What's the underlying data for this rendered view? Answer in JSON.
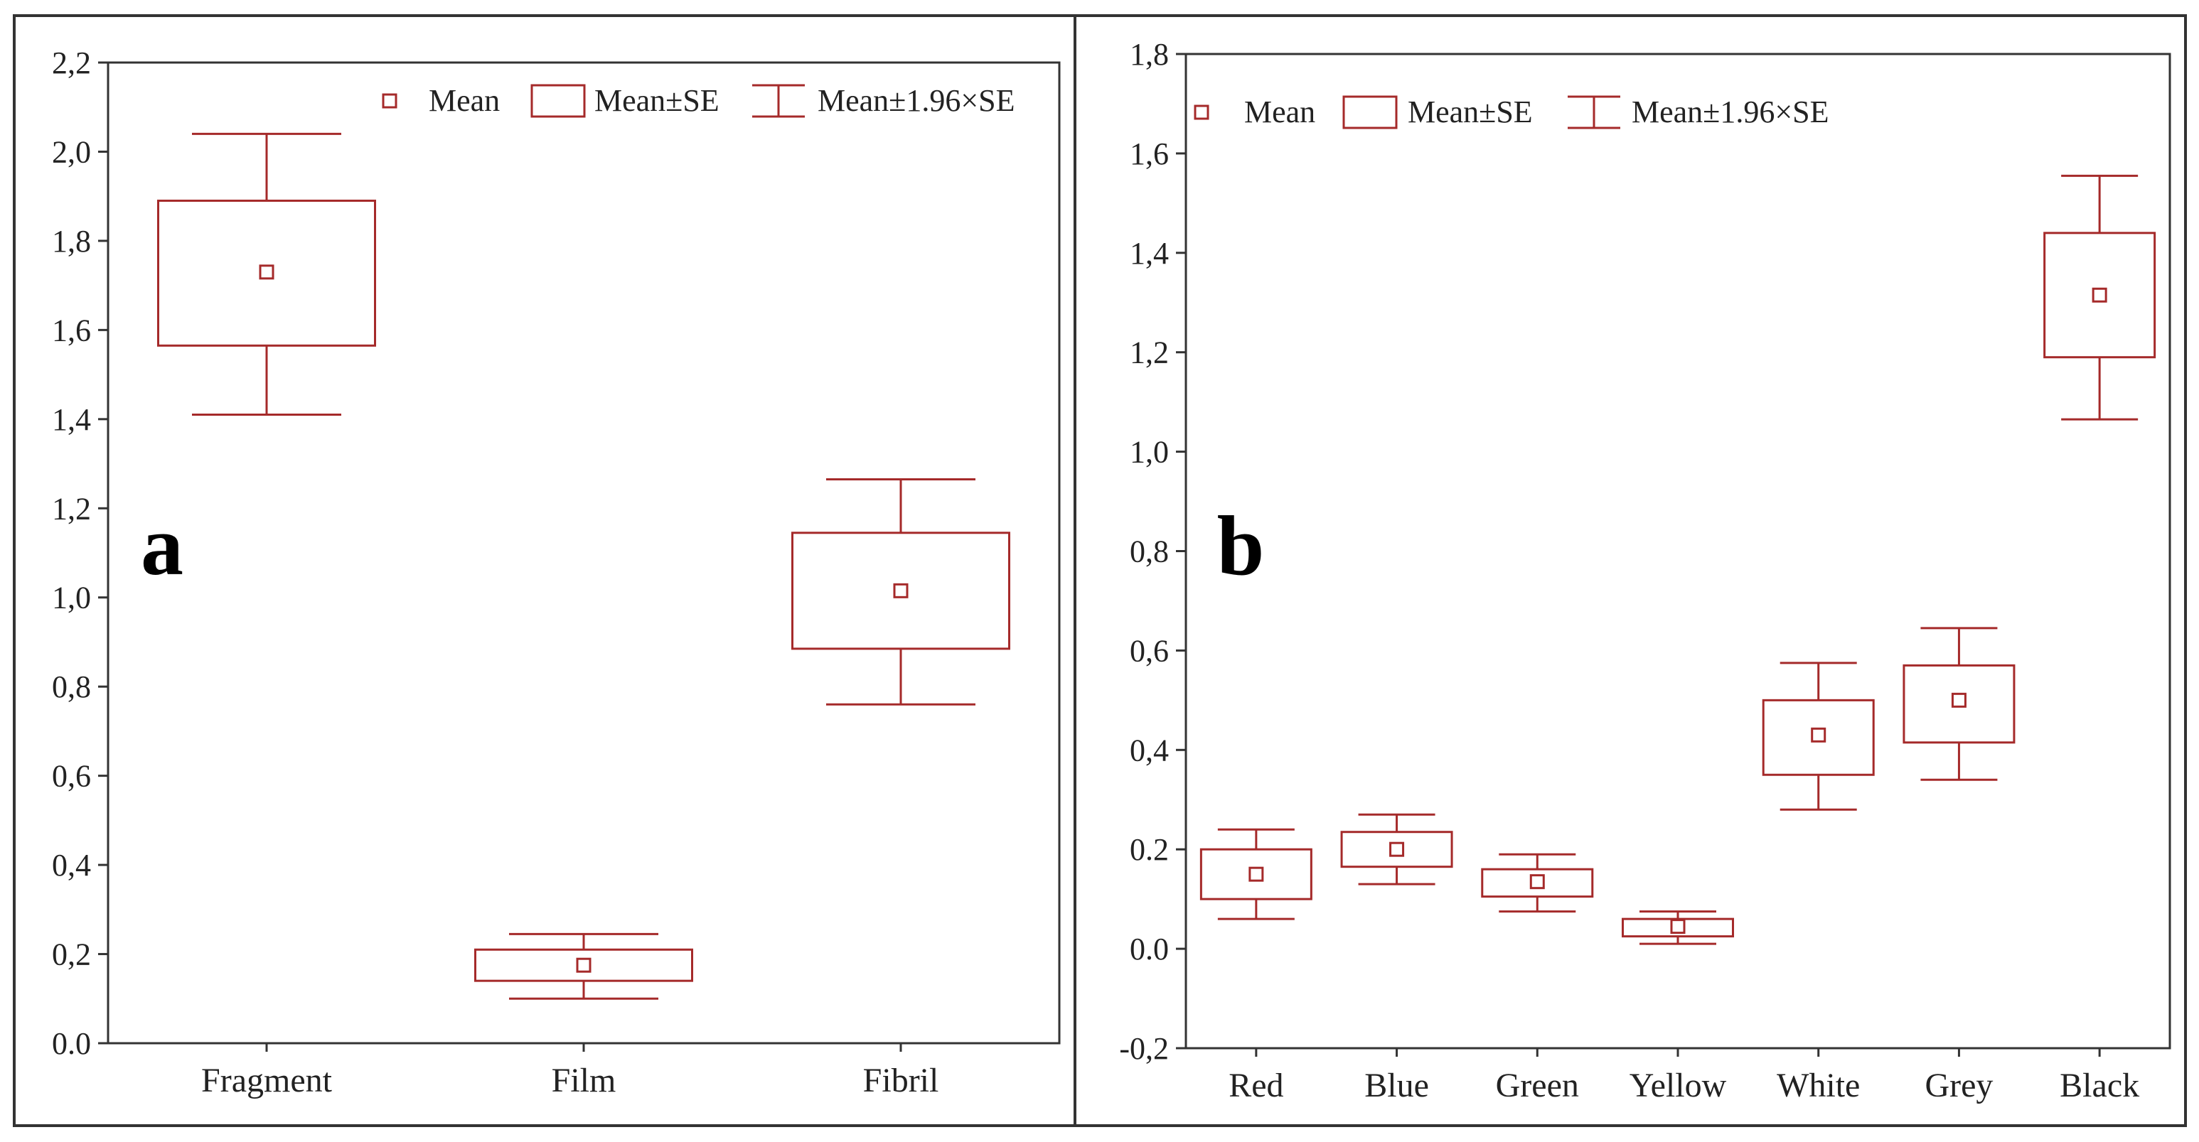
{
  "accent": "#a52a2a",
  "legend": {
    "mean": "Mean",
    "box": "Mean±SE",
    "whisker": "Mean±1.96×SE"
  },
  "chart_data": [
    {
      "type": "box",
      "panel_label": "a",
      "ylim": [
        0.0,
        2.2
      ],
      "yticks": [
        "0.0",
        "0,2",
        "0,4",
        "0,6",
        "0,8",
        "1,0",
        "1,2",
        "1,4",
        "1,6",
        "1,8",
        "2,0",
        "2,2"
      ],
      "ytick_values": [
        0.0,
        0.2,
        0.4,
        0.6,
        0.8,
        1.0,
        1.2,
        1.4,
        1.6,
        1.8,
        2.0,
        2.2
      ],
      "categories": [
        "Fragment",
        "Film",
        "Fibril"
      ],
      "series": [
        {
          "mean": 1.73,
          "se_low": 1.565,
          "se_high": 1.89,
          "ci_low": 1.41,
          "ci_high": 2.04
        },
        {
          "mean": 0.175,
          "se_low": 0.14,
          "se_high": 0.21,
          "ci_low": 0.1,
          "ci_high": 0.245
        },
        {
          "mean": 1.015,
          "se_low": 0.885,
          "se_high": 1.145,
          "ci_low": 0.76,
          "ci_high": 1.265
        }
      ]
    },
    {
      "type": "box",
      "panel_label": "b",
      "ylim": [
        -0.2,
        1.8
      ],
      "yticks": [
        "-0,2",
        "0.0",
        "0.2",
        "0,4",
        "0,6",
        "0,8",
        "1,0",
        "1,2",
        "1,4",
        "1,6",
        "1,8"
      ],
      "ytick_values": [
        -0.2,
        0.0,
        0.2,
        0.4,
        0.6,
        0.8,
        1.0,
        1.2,
        1.4,
        1.6,
        1.8
      ],
      "categories": [
        "Red",
        "Blue",
        "Green",
        "Yellow",
        "White",
        "Grey",
        "Black"
      ],
      "series": [
        {
          "mean": 0.15,
          "se_low": 0.1,
          "se_high": 0.2,
          "ci_low": 0.06,
          "ci_high": 0.24
        },
        {
          "mean": 0.2,
          "se_low": 0.165,
          "se_high": 0.235,
          "ci_low": 0.13,
          "ci_high": 0.27
        },
        {
          "mean": 0.135,
          "se_low": 0.105,
          "se_high": 0.16,
          "ci_low": 0.075,
          "ci_high": 0.19
        },
        {
          "mean": 0.045,
          "se_low": 0.025,
          "se_high": 0.06,
          "ci_low": 0.01,
          "ci_high": 0.075
        },
        {
          "mean": 0.43,
          "se_low": 0.35,
          "se_high": 0.5,
          "ci_low": 0.28,
          "ci_high": 0.575
        },
        {
          "mean": 0.5,
          "se_low": 0.415,
          "se_high": 0.57,
          "ci_low": 0.34,
          "ci_high": 0.645
        },
        {
          "mean": 1.315,
          "se_low": 1.19,
          "se_high": 1.44,
          "ci_low": 1.065,
          "ci_high": 1.555
        }
      ]
    }
  ]
}
